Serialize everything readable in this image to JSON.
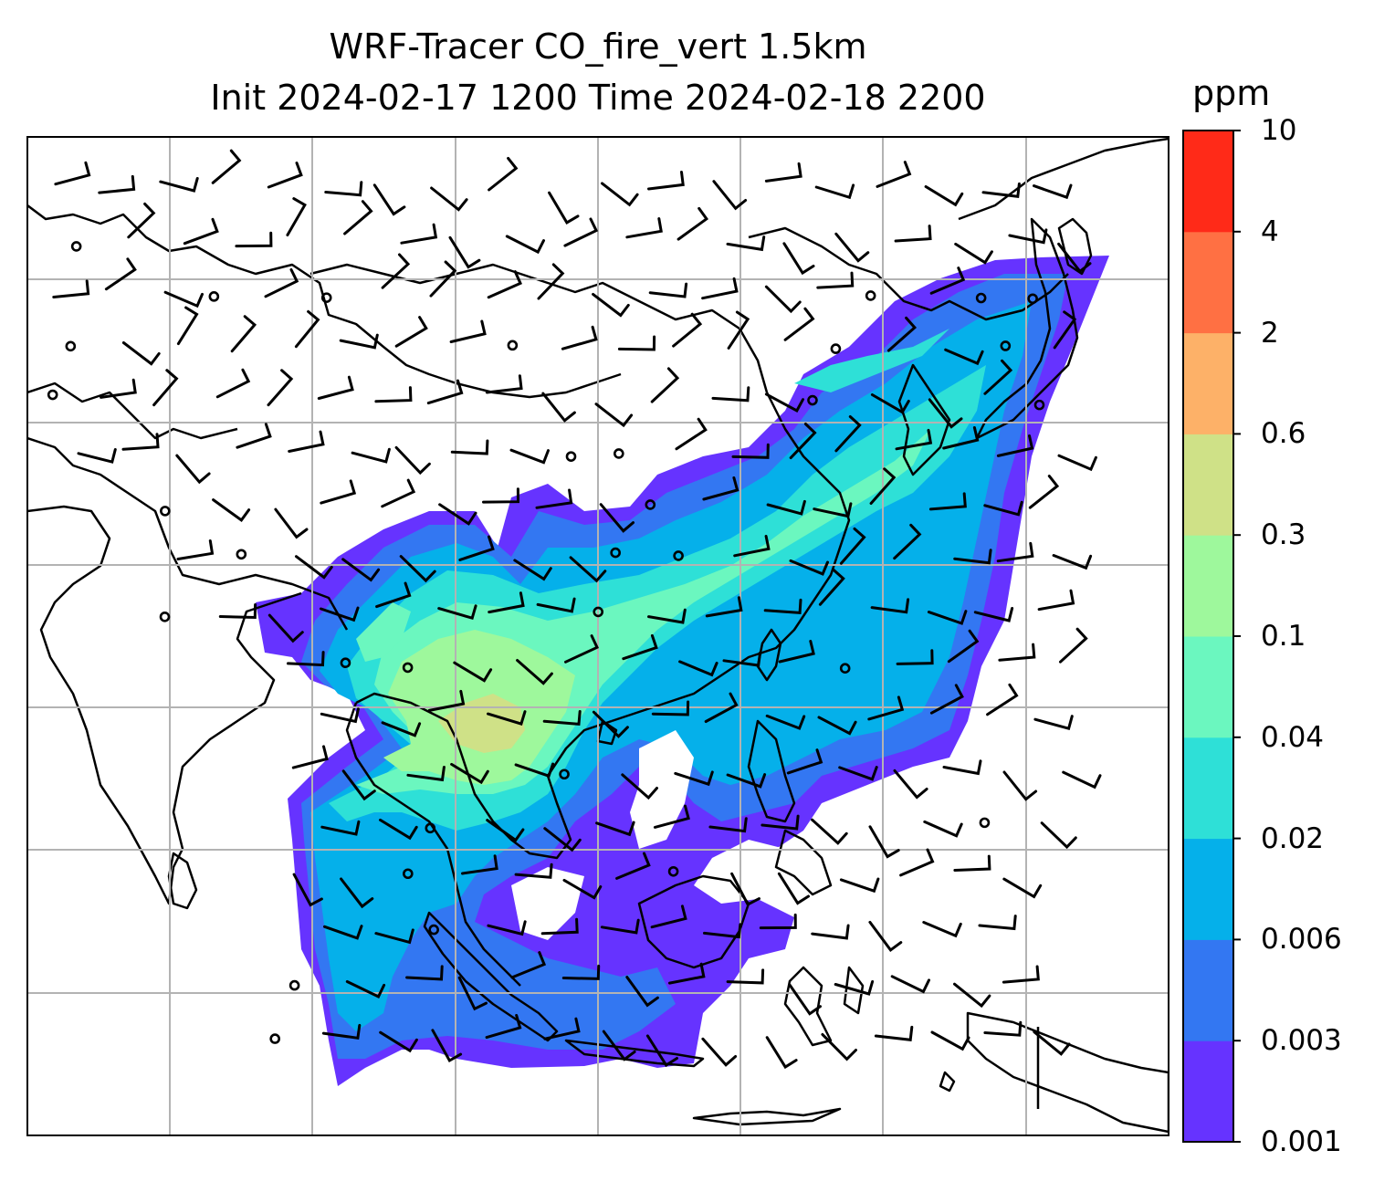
{
  "title": {
    "line1": "WRF-Tracer CO_fire_vert 1.5km",
    "line2": "Init 2024-02-17 1200 Time 2024-02-18 2200"
  },
  "colorbar": {
    "unit": "ppm",
    "ticks": [
      "0.001",
      "0.003",
      "0.006",
      "0.02",
      "0.04",
      "0.1",
      "0.3",
      "0.6",
      "2",
      "4",
      "10"
    ],
    "colors": [
      "#6633ff",
      "#3377f2",
      "#05b0ea",
      "#2ee0d7",
      "#6bf7bf",
      "#9ef89c",
      "#cfe187",
      "#fdb168",
      "#ff7043",
      "#ff2a18"
    ]
  },
  "map": {
    "land_outline_color": "#000000",
    "grid_color": "#b3b3b3",
    "plume_levels_shown": [
      "0.001",
      "0.003",
      "0.006",
      "0.02",
      "0.04",
      "0.1",
      "0.3"
    ]
  },
  "colors": {
    "frame": "#000000",
    "background": "#ffffff"
  }
}
